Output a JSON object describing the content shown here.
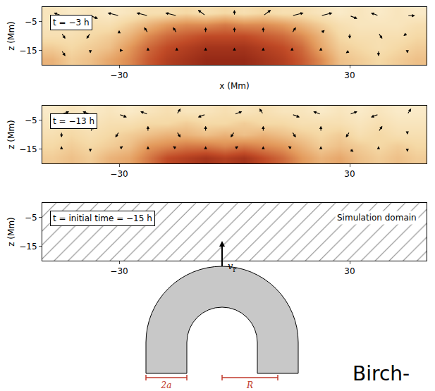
{
  "chart_data": [
    {
      "type": "heatmap",
      "label": "t = −3 h",
      "x_label": "x (Mm)",
      "y_label": "z (Mm)",
      "xlim": [
        -50,
        50
      ],
      "xticks": [
        -30,
        30
      ],
      "ylim": [
        -20,
        0
      ],
      "yticks": [
        -5,
        -15
      ],
      "color_range": [
        0,
        1
      ],
      "cells": {
        "x": [
          -47.5,
          -42.5,
          -37.5,
          -32.5,
          -27.5,
          -22.5,
          -17.5,
          -12.5,
          -7.5,
          -2.5,
          2.5,
          7.5,
          12.5,
          17.5,
          22.5,
          27.5,
          32.5,
          37.5,
          42.5,
          47.5
        ],
        "z": [
          -18,
          -14,
          -10,
          -6,
          -2
        ],
        "values": [
          [
            0.4,
            0.3,
            0.35,
            0.45,
            0.55,
            0.7,
            0.8,
            0.85,
            0.9,
            0.9,
            0.9,
            0.85,
            0.8,
            0.7,
            0.55,
            0.35,
            0.3,
            0.25,
            0.3,
            0.35
          ],
          [
            0.3,
            0.25,
            0.3,
            0.35,
            0.5,
            0.65,
            0.75,
            0.8,
            0.85,
            0.85,
            0.85,
            0.8,
            0.75,
            0.65,
            0.45,
            0.3,
            0.25,
            0.2,
            0.25,
            0.3
          ],
          [
            0.2,
            0.2,
            0.25,
            0.3,
            0.4,
            0.55,
            0.65,
            0.7,
            0.75,
            0.75,
            0.75,
            0.7,
            0.65,
            0.55,
            0.4,
            0.25,
            0.2,
            0.2,
            0.2,
            0.25
          ],
          [
            0.15,
            0.15,
            0.2,
            0.2,
            0.3,
            0.4,
            0.5,
            0.55,
            0.55,
            0.6,
            0.55,
            0.55,
            0.5,
            0.4,
            0.3,
            0.2,
            0.15,
            0.15,
            0.15,
            0.2
          ],
          [
            0.15,
            0.1,
            0.15,
            0.1,
            0.15,
            0.2,
            0.2,
            0.25,
            0.2,
            0.25,
            0.2,
            0.25,
            0.2,
            0.2,
            0.15,
            0.1,
            0.15,
            0.1,
            0.15,
            0.1
          ]
        ]
      },
      "vectors": {
        "x": [
          -45,
          -37.5,
          -30,
          -22.5,
          -15,
          -7.5,
          0,
          7.5,
          15,
          22.5,
          30,
          37.5,
          45
        ],
        "z": [
          -3,
          -9,
          -15
        ],
        "u": [
          [
            -2,
            2,
            -3,
            -3,
            -3,
            -2,
            0,
            2,
            3,
            3,
            2,
            -2,
            2
          ],
          [
            1,
            -1,
            0,
            -1,
            -1,
            0,
            0,
            0,
            1,
            1,
            0,
            1,
            -1
          ],
          [
            1,
            0,
            1,
            0,
            0,
            0,
            0,
            0,
            0,
            0,
            -1,
            0,
            0
          ]
        ],
        "w": [
          [
            1,
            -1,
            1,
            1,
            1,
            2,
            2,
            2,
            1,
            1,
            -1,
            1,
            0
          ],
          [
            -2,
            -2,
            1,
            2,
            2,
            2,
            2,
            2,
            2,
            1,
            -2,
            -2,
            -1
          ],
          [
            -2,
            -1,
            0,
            1,
            1,
            1,
            1,
            1,
            1,
            1,
            -1,
            -2,
            -1
          ]
        ]
      }
    },
    {
      "type": "heatmap",
      "label": "t = −13 h",
      "y_label": "z (Mm)",
      "xlim": [
        -50,
        50
      ],
      "xticks": [
        -30,
        30
      ],
      "ylim": [
        -20,
        0
      ],
      "yticks": [
        -5,
        -15
      ],
      "color_range": [
        0,
        1
      ],
      "cells": {
        "x": [
          -47.5,
          -42.5,
          -37.5,
          -32.5,
          -27.5,
          -22.5,
          -17.5,
          -12.5,
          -7.5,
          -2.5,
          2.5,
          7.5,
          12.5,
          17.5,
          22.5,
          27.5,
          32.5,
          37.5,
          42.5,
          47.5
        ],
        "z": [
          -18,
          -14,
          -10,
          -6,
          -2
        ],
        "values": [
          [
            0.3,
            0.35,
            0.3,
            0.4,
            0.45,
            0.6,
            0.75,
            0.8,
            0.85,
            0.8,
            0.85,
            0.75,
            0.65,
            0.5,
            0.4,
            0.45,
            0.35,
            0.3,
            0.35,
            0.3
          ],
          [
            0.25,
            0.3,
            0.25,
            0.3,
            0.35,
            0.5,
            0.55,
            0.6,
            0.6,
            0.55,
            0.6,
            0.55,
            0.5,
            0.4,
            0.3,
            0.35,
            0.3,
            0.25,
            0.3,
            0.25
          ],
          [
            0.2,
            0.25,
            0.2,
            0.25,
            0.3,
            0.35,
            0.4,
            0.4,
            0.35,
            0.4,
            0.35,
            0.4,
            0.35,
            0.3,
            0.25,
            0.3,
            0.2,
            0.25,
            0.2,
            0.2
          ],
          [
            0.15,
            0.2,
            0.15,
            0.2,
            0.2,
            0.25,
            0.25,
            0.3,
            0.25,
            0.25,
            0.3,
            0.25,
            0.25,
            0.2,
            0.2,
            0.2,
            0.15,
            0.2,
            0.15,
            0.15
          ],
          [
            0.1,
            0.15,
            0.1,
            0.15,
            0.1,
            0.15,
            0.2,
            0.15,
            0.15,
            0.2,
            0.15,
            0.2,
            0.15,
            0.15,
            0.1,
            0.15,
            0.1,
            0.15,
            0.1,
            0.1
          ]
        ]
      },
      "vectors": {
        "x": [
          -45,
          -37.5,
          -30,
          -22.5,
          -15,
          -7.5,
          0,
          7.5,
          15,
          22.5,
          30,
          37.5,
          45
        ],
        "z": [
          -3,
          -9,
          -15
        ],
        "u": [
          [
            2,
            -2,
            2,
            -2,
            1,
            -2,
            2,
            -1,
            2,
            -2,
            2,
            -2,
            1
          ],
          [
            0,
            1,
            -1,
            0,
            1,
            0,
            -1,
            0,
            1,
            0,
            -1,
            1,
            0
          ],
          [
            0,
            0,
            1,
            0,
            -1,
            0,
            1,
            0,
            -1,
            0,
            1,
            0,
            0
          ]
        ],
        "w": [
          [
            1,
            1,
            -1,
            1,
            2,
            -1,
            1,
            2,
            -1,
            1,
            1,
            -1,
            2
          ],
          [
            -2,
            2,
            -2,
            2,
            -2,
            2,
            -2,
            2,
            -2,
            2,
            -2,
            2,
            -1
          ],
          [
            1,
            -1,
            1,
            1,
            1,
            1,
            1,
            1,
            1,
            1,
            -1,
            1,
            -1
          ]
        ]
      }
    },
    {
      "type": "domain",
      "label": "t = initial time = −15 h",
      "domain_label": "Simulation domain",
      "y_label": "z (Mm)",
      "xlim": [
        -50,
        50
      ],
      "xticks": [
        -30,
        30
      ],
      "ylim": [
        -20,
        0
      ],
      "yticks": [
        -5,
        -15
      ]
    }
  ],
  "diagram": {
    "arrow_label": {
      "base": "v",
      "subscript": "r"
    },
    "dimension_labels": [
      "2a",
      "R"
    ],
    "footer_text": "Birch-"
  }
}
